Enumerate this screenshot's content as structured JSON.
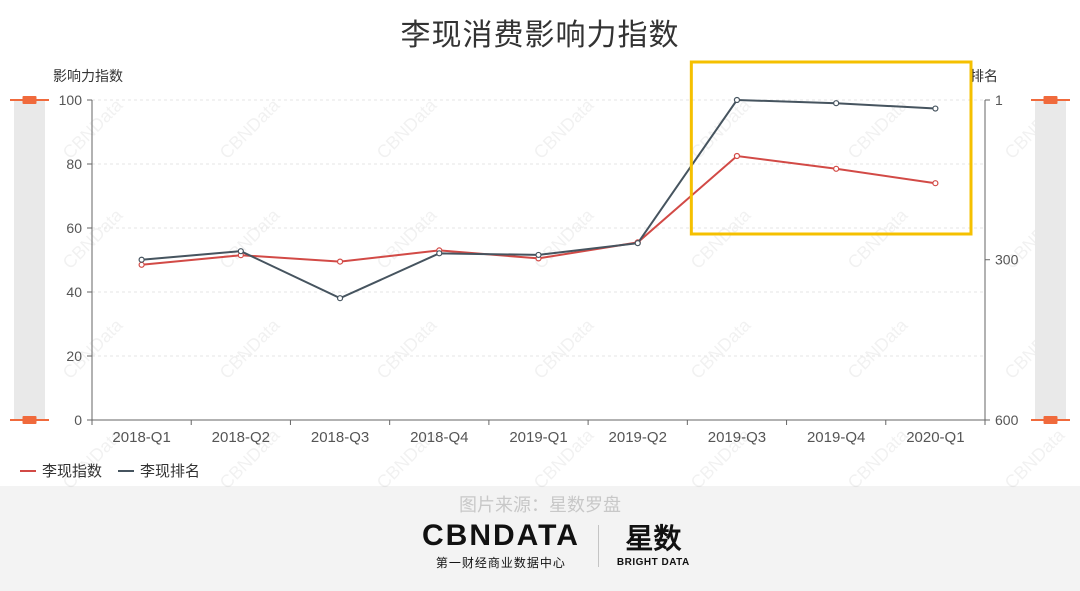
{
  "title": "李现消费影响力指数",
  "source": "图片来源：星数罗盘",
  "watermark": "CBNData",
  "logos": {
    "cbn": "CBNDATA",
    "cbn_sub": "第一财经商业数据中心",
    "xingshu": "星数",
    "xingshu_sub": "BRIGHT DATA"
  },
  "colors": {
    "index": "#d24a46",
    "rank": "#46545f",
    "highlight": "#f5c000",
    "slider": "#f06a3c"
  },
  "chart_data": {
    "type": "line",
    "categories": [
      "2018-Q1",
      "2018-Q2",
      "2018-Q3",
      "2018-Q4",
      "2019-Q1",
      "2019-Q2",
      "2019-Q3",
      "2019-Q4",
      "2020-Q1"
    ],
    "left_axis": {
      "label": "影响力指数",
      "ticks": [
        "0",
        "20",
        "40",
        "60",
        "80",
        "100"
      ],
      "range": [
        0,
        100
      ]
    },
    "right_axis": {
      "label": "排名",
      "ticks": [
        "1",
        "300",
        "600"
      ],
      "range": [
        1,
        600
      ],
      "inverted": true
    },
    "series": [
      {
        "name": "李现指数",
        "axis": "left",
        "values": [
          48.5,
          51.5,
          49.5,
          53,
          50.5,
          55.5,
          82.5,
          78.5,
          74
        ]
      },
      {
        "name": "李现排名",
        "axis": "right",
        "values": [
          300,
          284,
          372,
          288,
          291,
          269,
          1,
          7,
          17
        ]
      }
    ],
    "highlight": {
      "from_category": "2019-Q3",
      "to_category": "2020-Q1"
    },
    "grid": true,
    "legend": "bottom-left"
  }
}
